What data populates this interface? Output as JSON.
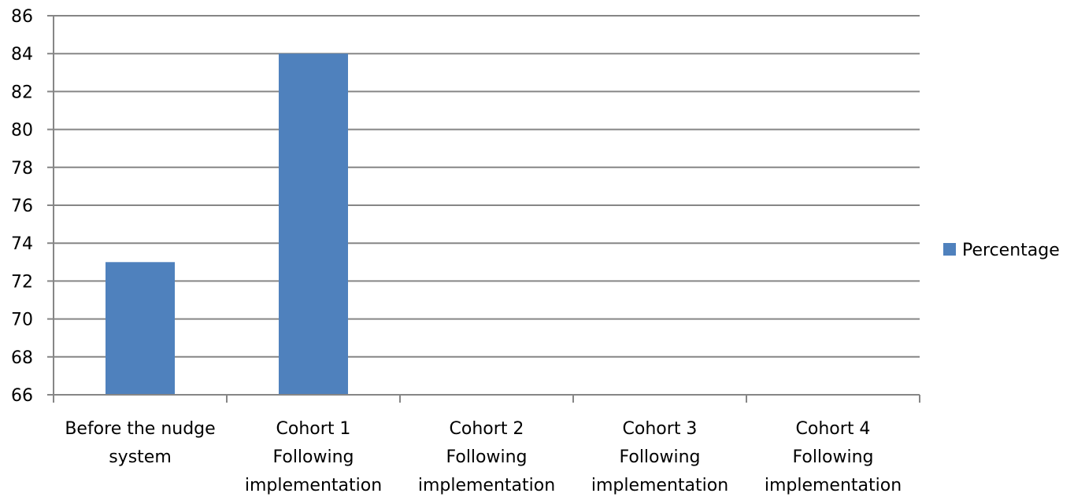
{
  "chart_data": {
    "type": "bar",
    "categories": [
      [
        "Before the nudge",
        "system"
      ],
      [
        "Cohort 1",
        "Following",
        "implementation"
      ],
      [
        "Cohort 2",
        "Following",
        "implementation"
      ],
      [
        "Cohort 3",
        "Following",
        "implementation"
      ],
      [
        "Cohort 4",
        "Following",
        "implementation"
      ]
    ],
    "series": [
      {
        "name": "Percentage",
        "color": "#4f81bd",
        "values": [
          73,
          84,
          null,
          null,
          null
        ]
      }
    ],
    "title": "",
    "xlabel": "",
    "ylabel": "",
    "ylim": [
      66,
      86
    ],
    "yticks": [
      "66",
      "68",
      "70",
      "72",
      "74",
      "76",
      "78",
      "80",
      "82",
      "84",
      "86"
    ],
    "grid": true,
    "legend_position": "right"
  }
}
